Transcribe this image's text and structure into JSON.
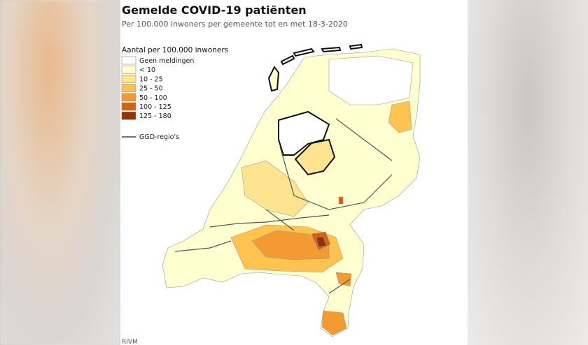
{
  "header": {
    "title": "Gemelde COVID-19 patiënten",
    "subtitle": "Per 100.000 inwoners per gemeente tot en met 18-3-2020"
  },
  "legend": {
    "title": "Aantal per 100.000 inwoners",
    "items": [
      {
        "label": "Geen meldingen",
        "color": "#ffffff"
      },
      {
        "label": "< 10",
        "color": "#ffffcc"
      },
      {
        "label": "10 - 25",
        "color": "#fee391"
      },
      {
        "label": "25 - 50",
        "color": "#fec44f"
      },
      {
        "label": "50 - 100",
        "color": "#f39a33"
      },
      {
        "label": "100 - 125",
        "color": "#d9600e"
      },
      {
        "label": "125 - 180",
        "color": "#933204"
      }
    ],
    "regions_label": "GGD-regio's"
  },
  "source": "RIVM"
}
